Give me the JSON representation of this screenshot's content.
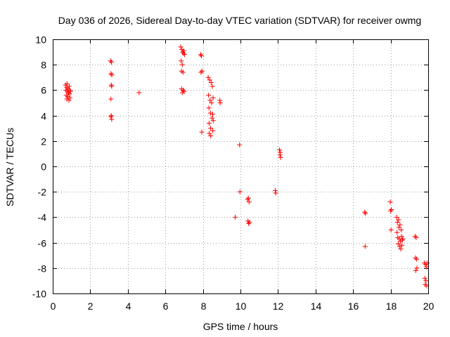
{
  "chart_data": {
    "type": "scatter",
    "title": "Day 036 of 2026, Sidereal Day-to-day VTEC variation (SDTVAR) for receiver owmg",
    "xlabel": "GPS time / hours",
    "ylabel": "SDTVAR / TECUs",
    "xlim": [
      0,
      20
    ],
    "ylim": [
      -10,
      10
    ],
    "xticks": [
      "0",
      "2",
      "4",
      "6",
      "8",
      "10",
      "12",
      "14",
      "16",
      "18",
      "20"
    ],
    "yticks": [
      "-10",
      "-8",
      "-6",
      "-4",
      "-2",
      "0",
      "2",
      "4",
      "6",
      "8",
      "10"
    ],
    "grid": true,
    "marker": "+",
    "color": "#ff0000",
    "series": [
      {
        "name": "SDTVAR",
        "points": [
          [
            0.68,
            6.4
          ],
          [
            0.7,
            6.0
          ],
          [
            0.72,
            5.6
          ],
          [
            0.74,
            6.2
          ],
          [
            0.75,
            5.3
          ],
          [
            0.76,
            6.5
          ],
          [
            0.78,
            5.9
          ],
          [
            0.8,
            5.5
          ],
          [
            0.82,
            6.1
          ],
          [
            0.84,
            5.8
          ],
          [
            0.86,
            5.2
          ],
          [
            0.88,
            6.3
          ],
          [
            0.9,
            5.7
          ],
          [
            0.91,
            6.0
          ],
          [
            0.92,
            5.4
          ],
          [
            0.94,
            5.9
          ],
          [
            3.08,
            8.3
          ],
          [
            3.1,
            7.3
          ],
          [
            3.12,
            6.4
          ],
          [
            3.1,
            5.3
          ],
          [
            3.12,
            4.0
          ],
          [
            3.14,
            3.7
          ],
          [
            3.13,
            8.2
          ],
          [
            3.15,
            7.2
          ],
          [
            3.14,
            6.3
          ],
          [
            3.1,
            3.9
          ],
          [
            4.6,
            5.8
          ],
          [
            6.82,
            9.4
          ],
          [
            6.84,
            8.3
          ],
          [
            6.86,
            7.5
          ],
          [
            6.86,
            6.1
          ],
          [
            6.88,
            9.2
          ],
          [
            6.9,
            8.0
          ],
          [
            6.9,
            5.8
          ],
          [
            6.92,
            9.0
          ],
          [
            6.94,
            7.4
          ],
          [
            6.95,
            6.0
          ],
          [
            6.96,
            8.9
          ],
          [
            6.98,
            9.1
          ],
          [
            7.0,
            5.9
          ],
          [
            7.02,
            8.8
          ],
          [
            7.88,
            8.8
          ],
          [
            7.9,
            7.4
          ],
          [
            7.92,
            8.7
          ],
          [
            7.94,
            2.7
          ],
          [
            7.95,
            7.5
          ],
          [
            8.28,
            7.0
          ],
          [
            8.3,
            5.6
          ],
          [
            8.32,
            4.6
          ],
          [
            8.33,
            3.4
          ],
          [
            8.34,
            2.6
          ],
          [
            8.36,
            6.8
          ],
          [
            8.38,
            5.2
          ],
          [
            8.4,
            4.2
          ],
          [
            8.41,
            3.0
          ],
          [
            8.42,
            2.4
          ],
          [
            8.44,
            6.6
          ],
          [
            8.46,
            5.0
          ],
          [
            8.48,
            3.8
          ],
          [
            8.5,
            6.3
          ],
          [
            8.52,
            4.1
          ],
          [
            8.53,
            2.8
          ],
          [
            8.54,
            5.4
          ],
          [
            8.55,
            3.6
          ],
          [
            8.9,
            5.2
          ],
          [
            8.92,
            5.0
          ],
          [
            9.72,
            -4.0
          ],
          [
            9.95,
            1.7
          ],
          [
            9.97,
            -2.0
          ],
          [
            10.38,
            -2.6
          ],
          [
            10.4,
            -4.3
          ],
          [
            10.42,
            -2.5
          ],
          [
            10.44,
            -4.5
          ],
          [
            10.46,
            -2.8
          ],
          [
            10.48,
            -4.4
          ],
          [
            11.85,
            -1.9
          ],
          [
            11.88,
            -2.1
          ],
          [
            12.08,
            1.3
          ],
          [
            12.1,
            0.9
          ],
          [
            12.12,
            1.1
          ],
          [
            12.14,
            0.7
          ],
          [
            16.62,
            -3.6
          ],
          [
            16.64,
            -6.3
          ],
          [
            16.66,
            -3.7
          ],
          [
            17.98,
            -2.8
          ],
          [
            18.0,
            -3.5
          ],
          [
            18.02,
            -5.0
          ],
          [
            18.04,
            -3.4
          ],
          [
            18.32,
            -4.0
          ],
          [
            18.34,
            -5.2
          ],
          [
            18.36,
            -4.4
          ],
          [
            18.38,
            -5.6
          ],
          [
            18.4,
            -6.1
          ],
          [
            18.42,
            -4.2
          ],
          [
            18.44,
            -4.8
          ],
          [
            18.46,
            -5.7
          ],
          [
            18.48,
            -6.3
          ],
          [
            18.5,
            -4.6
          ],
          [
            18.52,
            -5.9
          ],
          [
            18.54,
            -6.5
          ],
          [
            18.56,
            -5.0
          ],
          [
            18.58,
            -5.5
          ],
          [
            18.6,
            -6.2
          ],
          [
            18.62,
            -5.8
          ],
          [
            18.65,
            -5.7
          ],
          [
            19.3,
            -5.5
          ],
          [
            19.32,
            -7.2
          ],
          [
            19.34,
            -8.2
          ],
          [
            19.36,
            -5.6
          ],
          [
            19.38,
            -7.3
          ],
          [
            19.4,
            -8.0
          ],
          [
            19.8,
            -7.6
          ],
          [
            19.82,
            -8.8
          ],
          [
            19.84,
            -9.3
          ],
          [
            19.86,
            -7.7
          ],
          [
            19.88,
            -9.0
          ],
          [
            19.9,
            -7.9
          ],
          [
            19.92,
            -9.4
          ],
          [
            19.94,
            -7.6
          ]
        ]
      }
    ]
  }
}
